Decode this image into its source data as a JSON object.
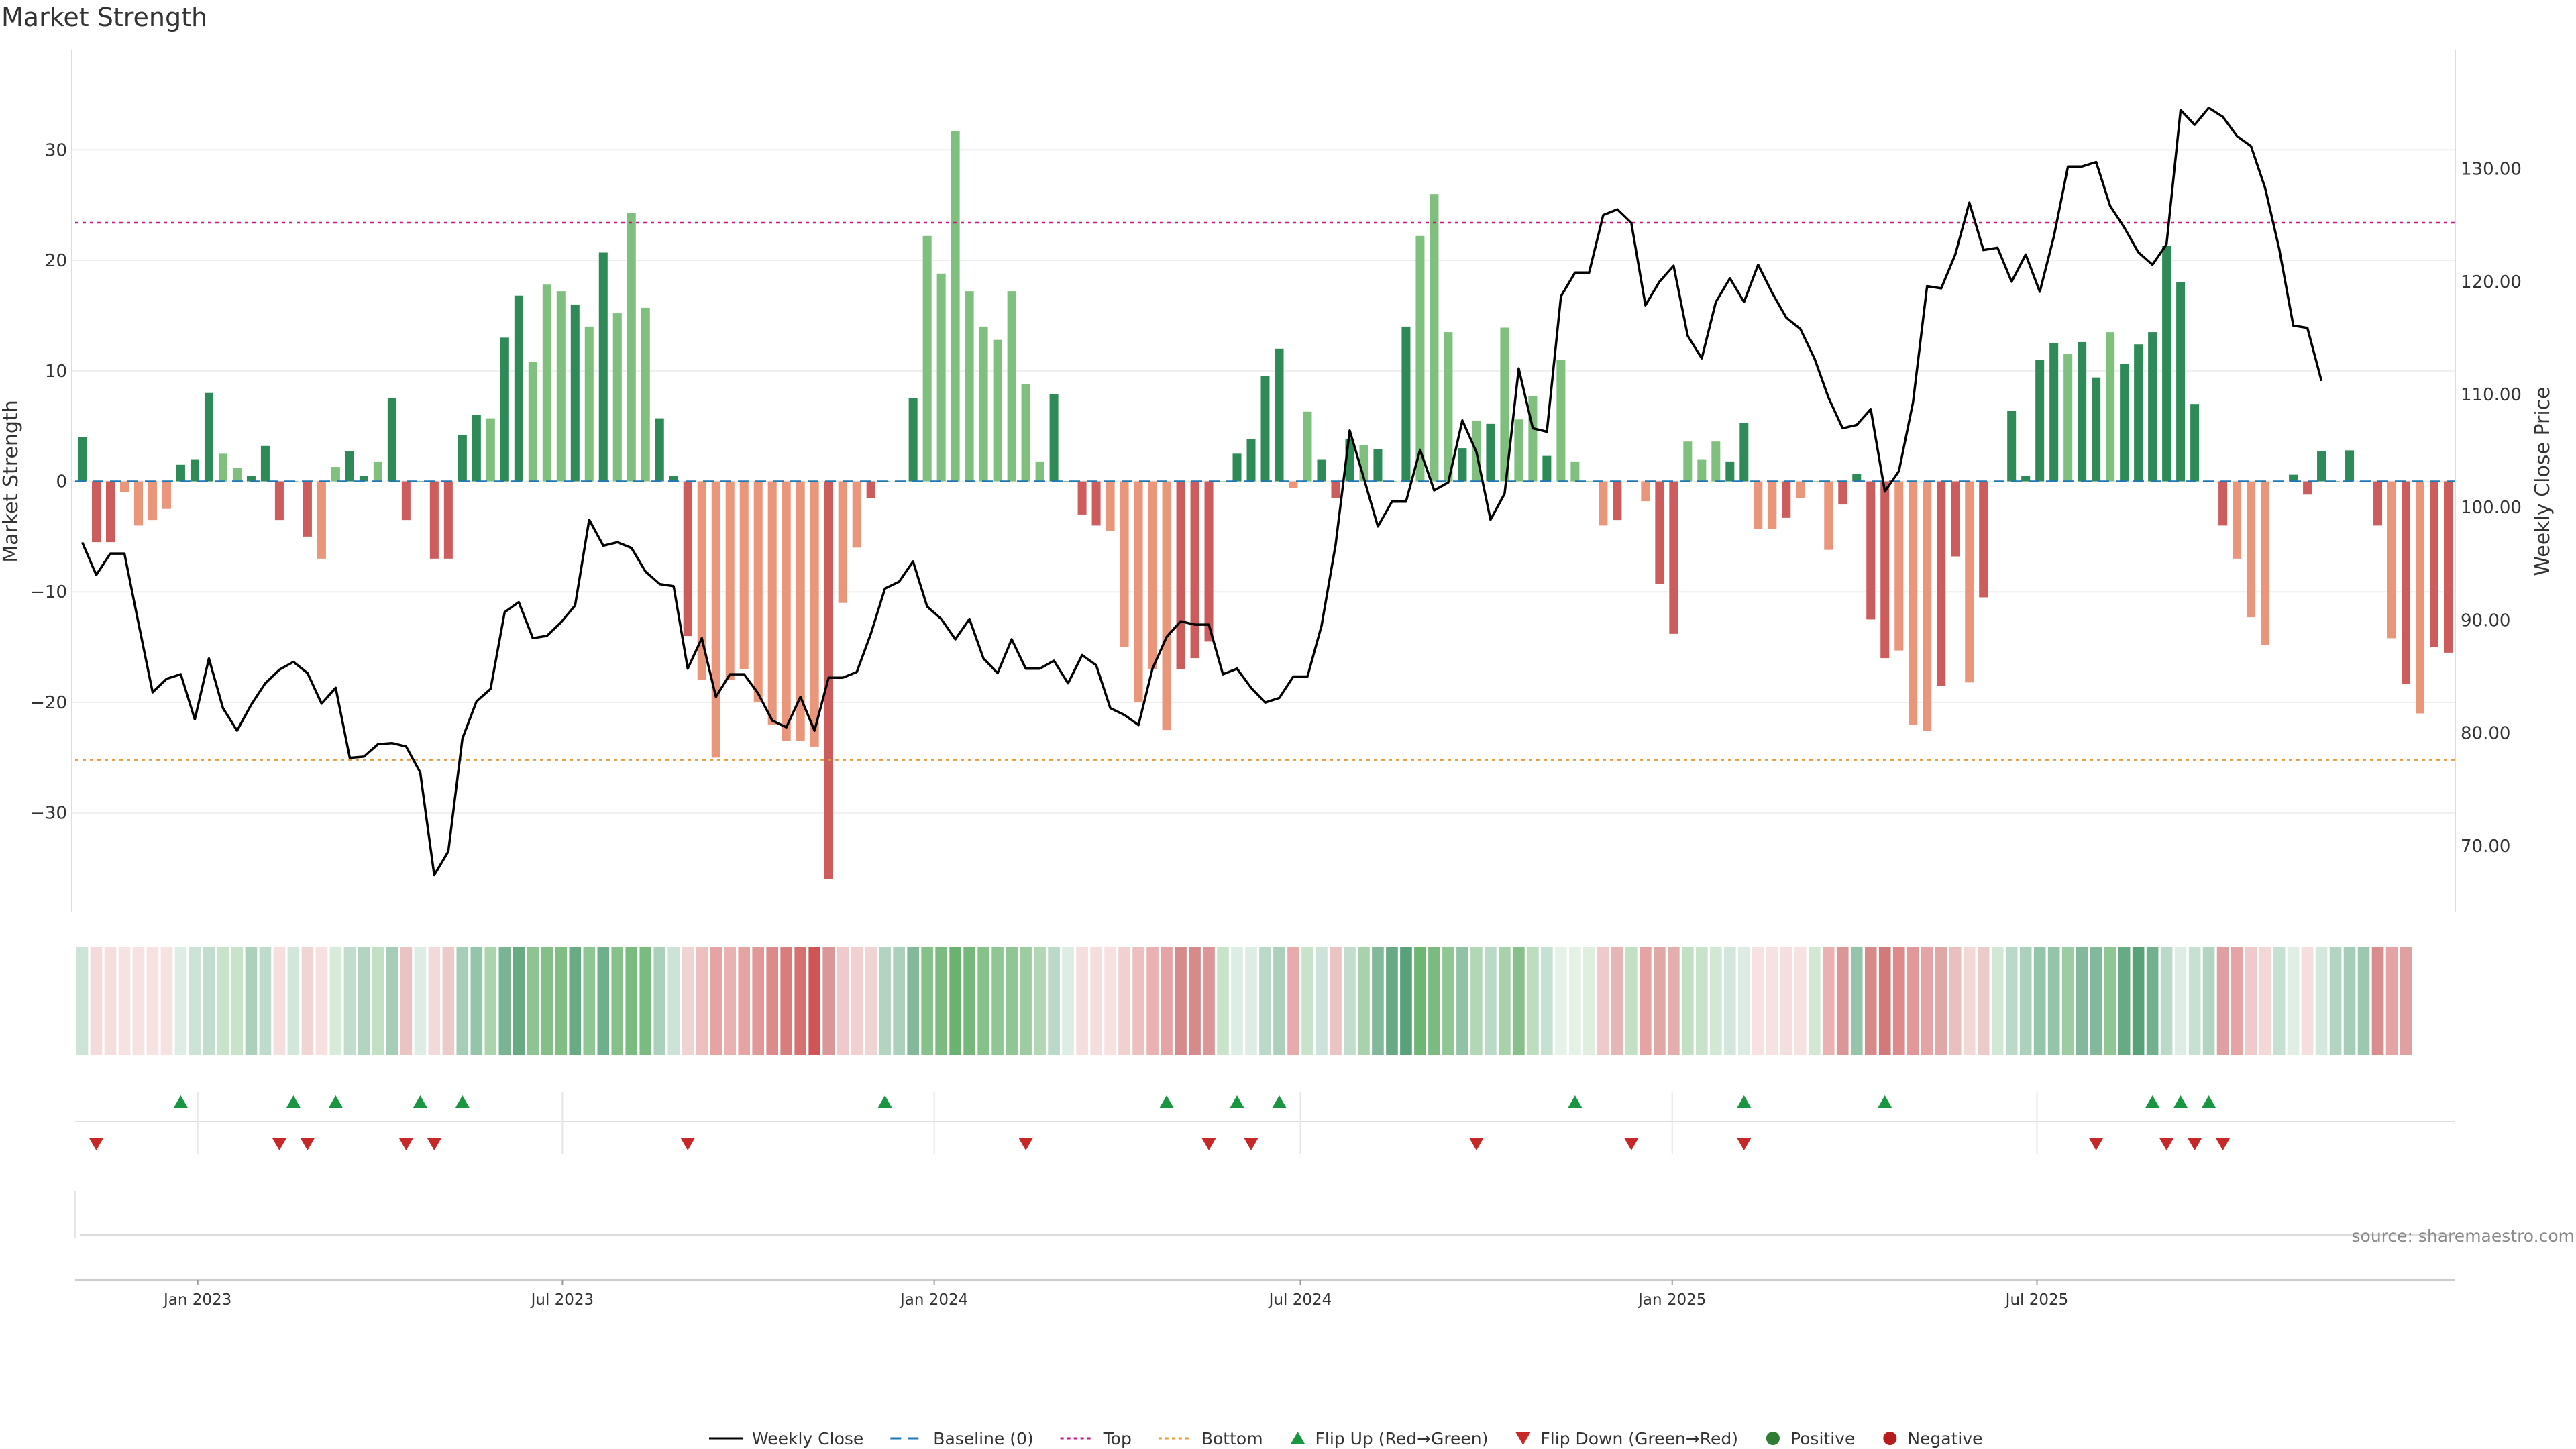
{
  "title": "Market Strength",
  "source": "source: sharemaestro.com",
  "colors": {
    "strong_green": "#2e8b57",
    "light_green": "#7fc07f",
    "strong_red": "#cd5c5c",
    "light_red": "#e9967a",
    "price_line": "#000000",
    "top_line": "#c71585",
    "bottom_line": "#e59a3c",
    "baseline": "#1f77b4",
    "flip_up": "#1a9641",
    "flip_down": "#c62828",
    "positive": "#2e7d32",
    "negative": "#b71c1c"
  },
  "chart_data": {
    "type": "bar+line",
    "title": "Market Strength",
    "ylabel": "Market Strength",
    "y2label": "Weekly Close Price",
    "ylim": [
      -39,
      39
    ],
    "y2lim": [
      64.1,
      140.5
    ],
    "yticks": [
      -30,
      -20,
      -10,
      0,
      10,
      20,
      30
    ],
    "y2ticks": [
      70,
      80,
      90,
      100,
      110,
      120,
      130
    ],
    "y2tick_labels": [
      "70.00",
      "80.00",
      "90.00",
      "100.00",
      "110.00",
      "120.00",
      "130.00"
    ],
    "top_level": 23.4,
    "bottom_level": -25.2,
    "date_labels": [
      {
        "label": "Jan 2023",
        "week": 8.7
      },
      {
        "label": "Jul 2023",
        "week": 34.6
      },
      {
        "label": "Jan 2024",
        "week": 61
      },
      {
        "label": "Jul 2024",
        "week": 87
      },
      {
        "label": "Jan 2025",
        "week": 113.4
      },
      {
        "label": "Jul 2025",
        "week": 139.3
      }
    ],
    "strength": [
      4,
      -5.5,
      -5.5,
      -1,
      -4,
      -3.5,
      -2.5,
      1.5,
      2,
      8,
      2.5,
      1.2,
      0.5,
      3.2,
      -3.5,
      0,
      -5,
      -7,
      1.3,
      2.7,
      0.5,
      1.8,
      7.5,
      -3.5,
      0,
      -7,
      -7,
      4.2,
      6,
      5.7,
      13,
      16.8,
      10.8,
      17.8,
      17.2,
      16,
      14,
      20.7,
      15.2,
      24.3,
      15.7,
      5.7,
      0.5,
      -14,
      -18,
      -25,
      -18,
      -17,
      -20,
      -22,
      -23.5,
      -23.5,
      -24,
      -36,
      -11,
      -6,
      -1.5,
      0,
      0,
      7.5,
      22.2,
      18.8,
      31.7,
      17.2,
      14,
      12.8,
      17.2,
      8.8,
      1.8,
      7.9,
      0,
      -3,
      -4,
      -4.5,
      -15,
      -20,
      -17,
      -22.5,
      -17,
      -16,
      -14.5,
      0,
      2.5,
      3.8,
      9.5,
      12,
      -0.6,
      6.3,
      2,
      -1.5,
      3.8,
      3.3,
      2.9,
      0,
      14,
      22.2,
      26,
      13.5,
      3,
      5.5,
      5.2,
      13.9,
      5.6,
      7.7,
      2.3,
      11,
      1.8,
      0,
      -4,
      -3.5,
      0,
      -1.8,
      -9.3,
      -13.8,
      3.6,
      2,
      3.6,
      1.8,
      5.3,
      -4.3,
      -4.3,
      -3.3,
      -1.5,
      0,
      -6.2,
      -2.1,
      0.7,
      -12.5,
      -16,
      -15.3,
      -22,
      -22.6,
      -18.5,
      -6.8,
      -18.2,
      -10.5,
      0,
      6.4,
      0.5,
      11,
      12.5,
      11.5,
      12.6,
      9.4,
      13.5,
      10.6,
      12.4,
      13.5,
      21.3,
      18,
      7,
      0,
      -4,
      -7,
      -12.3,
      -14.8,
      0,
      0.6,
      -1.2,
      2.7,
      0,
      2.8,
      0,
      -4,
      -14.2,
      -18.3,
      -21,
      -15,
      -15.5
    ],
    "class": "sssllllsssllsssssllsslssssssslsslllslslllssslllllllllsllsssslllllllllsssslllllssslssssllssslssslllslslllsllllsllsslllssllslllsssslllsslslsssslsslsssssssslllsssssssslslsssssllllsssslll",
    "close": [
      96.9,
      94,
      95.9,
      95.9,
      89.7,
      83.6,
      84.8,
      85.2,
      81.2,
      86.6,
      82.2,
      80.2,
      82.5,
      84.4,
      85.6,
      86.3,
      85.3,
      82.6,
      84,
      77.8,
      77.9,
      79,
      79.1,
      78.8,
      76.5,
      67.4,
      69.5,
      79.5,
      82.8,
      83.9,
      90.7,
      91.6,
      88.4,
      88.6,
      89.8,
      91.3,
      98.9,
      96.6,
      96.9,
      96.4,
      94.3,
      93.2,
      93,
      85.7,
      88.4,
      83.2,
      85.2,
      85.2,
      83.5,
      81.1,
      80.5,
      83.2,
      80.2,
      84.9,
      84.9,
      85.4,
      88.8,
      92.8,
      93.4,
      95.2,
      91.2,
      90.1,
      88.3,
      90.1,
      86.6,
      85.3,
      88.3,
      85.7,
      85.7,
      86.4,
      84.4,
      86.9,
      86,
      82.2,
      81.6,
      80.7,
      85.7,
      88.5,
      89.9,
      89.6,
      89.6,
      85.2,
      85.7,
      84,
      82.7,
      83.1,
      85,
      85,
      89.5,
      96.7,
      106.8,
      102.6,
      98.3,
      100.5,
      100.5,
      105.1,
      101.5,
      102.2,
      107.7,
      104.9,
      98.9,
      101.2,
      112.3,
      107,
      106.7,
      118.7,
      120.8,
      120.8,
      125.9,
      126.4,
      125.2,
      117.9,
      120,
      121.4,
      115.2,
      113.2,
      118.2,
      120.3,
      118.2,
      121.5,
      119,
      116.8,
      115.8,
      113.2,
      109.7,
      107,
      107.3,
      108.7,
      101.4,
      103.2,
      109.3,
      119.6,
      119.4,
      122.4,
      127,
      122.8,
      123,
      120,
      122.4,
      119.1,
      124,
      130.2,
      130.2,
      130.6,
      126.7,
      124.8,
      122.6,
      121.5,
      123.3,
      135.2,
      133.9,
      135.4,
      134.6,
      132.9,
      132,
      128.3,
      122.9,
      116.1,
      115.9,
      111.2
    ],
    "heat": [
      17,
      12,
      8,
      6,
      4,
      3,
      4,
      12,
      18,
      22,
      25,
      25,
      30,
      23,
      8,
      16,
      14,
      12,
      18,
      22,
      28,
      28,
      32,
      20,
      12,
      13,
      18,
      32,
      38,
      38,
      48,
      55,
      52,
      56,
      58,
      55,
      50,
      52,
      55,
      60,
      60,
      30,
      18,
      15,
      25,
      35,
      30,
      35,
      40,
      45,
      50,
      55,
      65,
      35,
      20,
      18,
      15,
      28,
      30,
      45,
      55,
      60,
      70,
      62,
      55,
      50,
      50,
      45,
      35,
      25,
      12,
      10,
      6,
      12,
      18,
      25,
      30,
      35,
      40,
      40,
      35,
      25,
      12,
      12,
      25,
      30,
      32,
      25,
      18,
      20,
      22,
      40,
      45,
      55,
      60,
      65,
      60,
      50,
      40,
      35,
      25,
      40,
      55,
      30,
      20,
      10,
      12,
      15,
      20,
      25,
      28,
      35,
      30,
      28,
      28,
      25,
      20,
      16,
      13,
      10,
      8,
      8,
      10,
      20,
      30,
      35,
      38,
      40,
      45,
      45,
      40,
      35,
      30,
      22,
      15,
      18,
      20,
      25,
      30,
      38,
      38,
      45,
      45,
      45,
      50,
      55,
      60,
      50,
      25,
      12,
      20,
      28,
      32,
      35,
      20,
      15,
      20,
      10,
      8,
      15,
      28,
      32,
      35,
      38,
      35,
      32
    ],
    "flip_up_weeks": [
      7,
      15,
      18,
      24,
      27,
      57,
      77,
      82,
      85,
      106,
      118,
      128,
      147,
      149,
      151
    ],
    "flip_down_weeks": [
      1,
      14,
      16,
      23,
      25,
      43,
      67,
      80,
      83,
      99,
      110,
      118,
      143,
      148,
      150,
      152
    ],
    "legend": [
      {
        "label": "Weekly Close",
        "type": "line"
      },
      {
        "label": "Baseline (0)",
        "type": "dashed"
      },
      {
        "label": "Top",
        "type": "dotted-top"
      },
      {
        "label": "Bottom",
        "type": "dotted-bottom"
      },
      {
        "label": "Flip Up (Red→Green)",
        "type": "tri-up"
      },
      {
        "label": "Flip Down (Green→Red)",
        "type": "tri-down"
      },
      {
        "label": "Positive",
        "type": "dot-pos"
      },
      {
        "label": "Negative",
        "type": "dot-neg"
      }
    ]
  }
}
